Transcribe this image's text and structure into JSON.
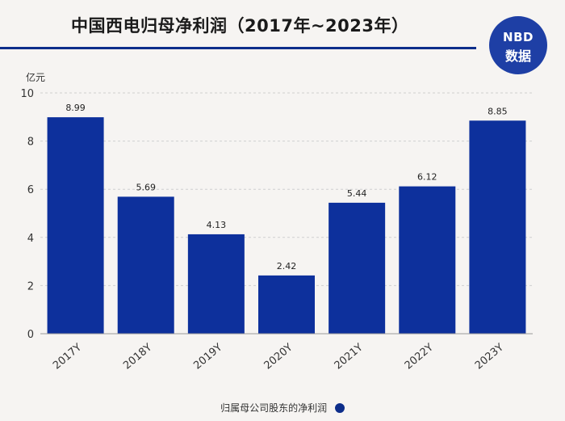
{
  "header": {
    "title": "中国西电归母净利润（2017年~2023年）"
  },
  "logo": {
    "line1": "NBD",
    "line2": "数据"
  },
  "colors": {
    "bar": "#0d309c",
    "rule": "#0d2d8a",
    "grid": "#cfcfcf",
    "background": "#f6f4f2"
  },
  "chart_data": {
    "type": "bar",
    "title": "中国西电归母净利润（2017年~2023年）",
    "unit_label": "亿元",
    "xlabel": "",
    "ylabel": "亿元",
    "categories": [
      "2017Y",
      "2018Y",
      "2019Y",
      "2020Y",
      "2021Y",
      "2022Y",
      "2023Y"
    ],
    "series": [
      {
        "name": "归属母公司股东的净利润",
        "values": [
          8.99,
          5.69,
          4.13,
          2.42,
          5.44,
          6.12,
          8.85
        ]
      }
    ],
    "data_labels": [
      "8.99",
      "5.69",
      "4.13",
      "2.42",
      "5.44",
      "6.12",
      "8.85"
    ],
    "ylim": [
      0,
      10
    ],
    "yticks": [
      0,
      2,
      4,
      6,
      8,
      10
    ],
    "grid": true,
    "legend_position": "bottom"
  },
  "legend": {
    "label": "归属母公司股东的净利润"
  }
}
